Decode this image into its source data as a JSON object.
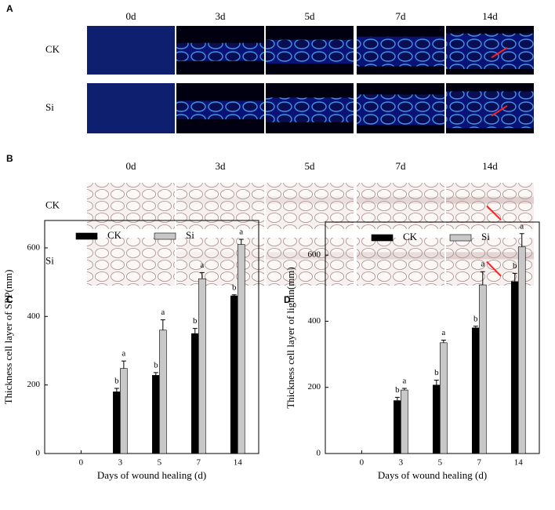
{
  "panel_a": {
    "label": "A",
    "days": [
      "0d",
      "3d",
      "5d",
      "7d",
      "14d"
    ],
    "rows": [
      "CK",
      "Si"
    ]
  },
  "panel_b": {
    "label": "B",
    "days": [
      "0d",
      "3d",
      "5d",
      "7d",
      "14d"
    ],
    "rows": [
      "CK",
      "Si"
    ]
  },
  "chart_data": [
    {
      "type": "bar",
      "panel_label": "C",
      "x_label": "Days of wound healing (d)",
      "y_label": "Thickness  cell layer of SPP(mm)",
      "categories": [
        "0",
        "3",
        "5",
        "7",
        "14"
      ],
      "ylim": [
        0,
        680
      ],
      "yticks": [
        0,
        200,
        400,
        600
      ],
      "series": [
        {
          "name": "CK",
          "color": "#000000",
          "values": [
            0,
            180,
            228,
            350,
            460
          ],
          "errors": [
            null,
            10,
            8,
            15,
            3
          ],
          "letters": [
            null,
            "b",
            "b",
            "b",
            "b"
          ]
        },
        {
          "name": "Si",
          "color": "#c8c8c8",
          "values": [
            0,
            248,
            360,
            510,
            610
          ],
          "errors": [
            null,
            22,
            30,
            18,
            15
          ],
          "letters": [
            null,
            "a",
            "a",
            "a",
            "a"
          ]
        }
      ]
    },
    {
      "type": "bar",
      "panel_label": "D",
      "x_label": "Days of wound healing (d)",
      "y_label": "Thickness  cell layer of lignin(mm)",
      "categories": [
        "0",
        "3",
        "5",
        "7",
        "14"
      ],
      "ylim": [
        0,
        700
      ],
      "yticks": [
        0,
        200,
        400,
        600
      ],
      "series": [
        {
          "name": "CK",
          "color": "#000000",
          "values": [
            0,
            160,
            207,
            380,
            520
          ],
          "errors": [
            null,
            10,
            15,
            5,
            25
          ],
          "letters": [
            null,
            "b",
            "b",
            "b",
            "b"
          ]
        },
        {
          "name": "Si",
          "color": "#c8c8c8",
          "values": [
            0,
            192,
            335,
            510,
            625
          ],
          "errors": [
            null,
            5,
            8,
            40,
            40
          ],
          "letters": [
            null,
            "a",
            "a",
            "a",
            "a"
          ]
        }
      ]
    }
  ]
}
